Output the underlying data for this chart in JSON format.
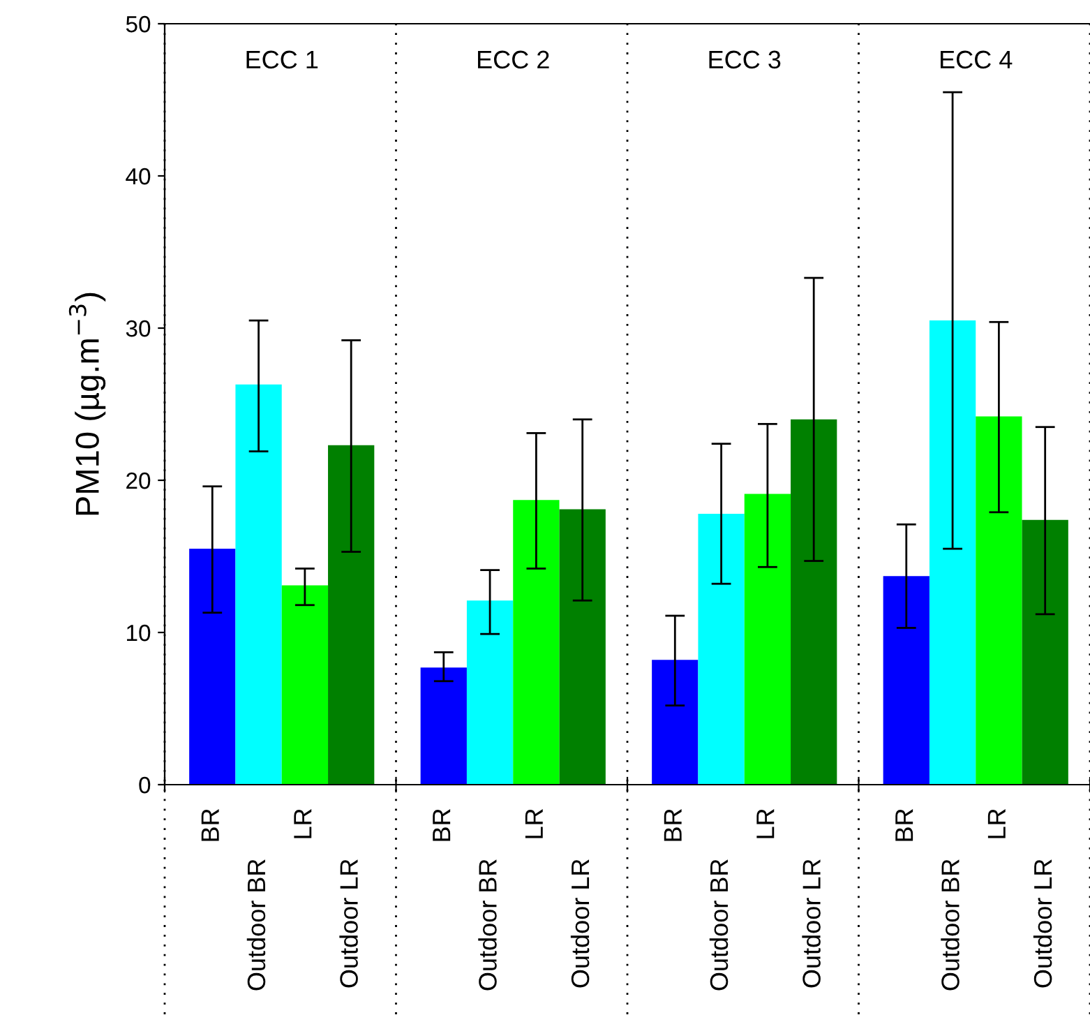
{
  "chart_data": {
    "type": "bar",
    "ylabel": "PM10 (µg.m$^{−3}$)",
    "categories": [
      "ECC 1",
      "ECC 2",
      "ECC 3",
      "ECC 4"
    ],
    "series": [
      {
        "name": "BR",
        "color": "#0000ff",
        "values": [
          15.5,
          7.7,
          8.2,
          13.7
        ],
        "errors": [
          [
            11.3,
            19.6
          ],
          [
            6.8,
            8.7
          ],
          [
            5.2,
            11.1
          ],
          [
            10.3,
            17.1
          ]
        ]
      },
      {
        "name": "Outdoor BR",
        "color": "#00ffff",
        "values": [
          26.3,
          12.1,
          17.8,
          30.5
        ],
        "errors": [
          [
            21.9,
            30.5
          ],
          [
            9.9,
            14.1
          ],
          [
            13.2,
            22.4
          ],
          [
            15.5,
            45.5
          ]
        ]
      },
      {
        "name": "LR",
        "color": "#00ff00",
        "values": [
          13.1,
          18.7,
          19.1,
          24.2
        ],
        "errors": [
          [
            11.8,
            14.2
          ],
          [
            14.2,
            23.1
          ],
          [
            14.3,
            23.7
          ],
          [
            17.9,
            30.4
          ]
        ]
      },
      {
        "name": "Outdoor LR",
        "color": "#008000",
        "values": [
          22.3,
          18.1,
          24.0,
          17.4
        ],
        "errors": [
          [
            15.3,
            29.2
          ],
          [
            12.1,
            24.0
          ],
          [
            14.7,
            33.3
          ],
          [
            11.2,
            23.5
          ]
        ]
      }
    ],
    "ylim": [
      0,
      50
    ],
    "yticks": [
      0,
      10,
      20,
      30,
      40,
      50
    ],
    "grid": false,
    "legend": false
  }
}
